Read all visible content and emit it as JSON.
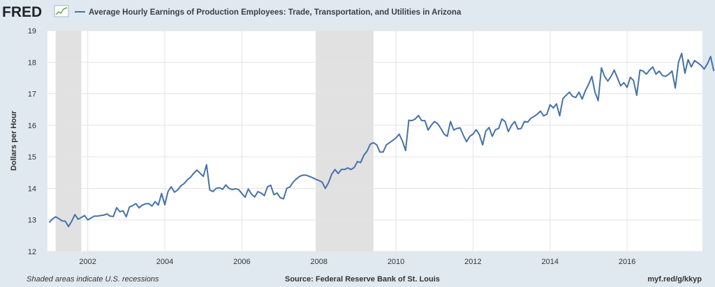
{
  "header": {
    "logo": "FRED",
    "logo_icon": "chart-line-icon",
    "title": "Average Hourly Earnings of Production Employees: Trade, Transportation, and Utilities in Arizona"
  },
  "footer": {
    "note": "Shaded areas indicate U.S. recessions",
    "source": "Source: Federal Reserve Bank of St. Louis",
    "link": "myf.red/g/kkyp"
  },
  "colors": {
    "line": "#4572a7",
    "recession": "#e1e1e1",
    "background": "#e1e9f0",
    "plot": "#ffffff"
  },
  "chart_data": {
    "type": "line",
    "title": "Average Hourly Earnings of Production Employees: Trade, Transportation, and Utilities in Arizona",
    "ylabel": "Dollars per Hour",
    "xlabel": "",
    "ylim": [
      12,
      19
    ],
    "xlim": [
      "2000-12-15",
      "2017-12-15"
    ],
    "yticks": [
      12,
      13,
      14,
      15,
      16,
      17,
      18,
      19
    ],
    "xticks": [
      "2002",
      "2004",
      "2006",
      "2008",
      "2010",
      "2012",
      "2014",
      "2016"
    ],
    "grid": true,
    "recessions": [
      [
        "2001-03-01",
        "2001-11-01"
      ],
      [
        "2007-12-01",
        "2009-06-01"
      ]
    ],
    "series": [
      {
        "start": "2001-01",
        "frequency": "monthly",
        "values": [
          12.92,
          13.03,
          13.1,
          13.04,
          12.97,
          12.96,
          12.79,
          12.96,
          13.17,
          13.02,
          13.08,
          13.14,
          13.0,
          13.06,
          13.12,
          13.12,
          13.14,
          13.15,
          13.19,
          13.12,
          13.11,
          13.39,
          13.26,
          13.29,
          13.1,
          13.41,
          13.45,
          13.52,
          13.38,
          13.47,
          13.51,
          13.52,
          13.44,
          13.58,
          13.47,
          13.84,
          13.48,
          13.9,
          14.05,
          13.88,
          13.95,
          14.08,
          14.15,
          14.27,
          14.35,
          14.48,
          14.58,
          14.48,
          14.38,
          14.75,
          13.95,
          13.9,
          14.0,
          14.02,
          13.97,
          14.11,
          14.0,
          13.96,
          13.99,
          13.96,
          13.84,
          13.72,
          13.98,
          13.82,
          13.73,
          13.9,
          13.85,
          13.77,
          14.05,
          14.1,
          13.8,
          13.85,
          13.7,
          13.67,
          14.0,
          14.05,
          14.2,
          14.3,
          14.38,
          14.42,
          14.42,
          14.38,
          14.34,
          14.29,
          14.25,
          14.2,
          14.0,
          14.18,
          14.45,
          14.6,
          14.47,
          14.6,
          14.6,
          14.65,
          14.6,
          14.66,
          14.85,
          14.82,
          15.05,
          15.18,
          15.4,
          15.45,
          15.38,
          15.15,
          15.15,
          15.38,
          15.45,
          15.52,
          15.6,
          15.72,
          15.5,
          15.2,
          16.16,
          16.15,
          16.2,
          16.31,
          16.15,
          16.15,
          15.85,
          16.0,
          16.12,
          16.05,
          15.9,
          15.72,
          15.65,
          16.12,
          15.85,
          15.9,
          15.92,
          15.68,
          15.48,
          15.65,
          15.72,
          15.86,
          15.7,
          15.38,
          15.82,
          15.93,
          15.65,
          15.86,
          15.9,
          16.2,
          16.12,
          15.8,
          16.0,
          16.12,
          15.88,
          15.9,
          16.12,
          16.1,
          16.22,
          16.28,
          16.35,
          16.45,
          16.3,
          16.35,
          16.65,
          16.55,
          16.68,
          16.3,
          16.85,
          16.95,
          17.05,
          16.92,
          16.88,
          17.05,
          16.83,
          17.1,
          17.3,
          17.55,
          17.05,
          16.78,
          17.82,
          17.55,
          17.4,
          17.55,
          17.75,
          17.5,
          17.25,
          17.35,
          17.2,
          17.52,
          17.42,
          16.95,
          17.75,
          17.72,
          17.62,
          17.75,
          17.85,
          17.62,
          17.72,
          17.58,
          17.55,
          17.62,
          17.72,
          17.18,
          18.0,
          18.28,
          17.65,
          18.08,
          17.85,
          18.05,
          17.98,
          17.9,
          17.78,
          17.95,
          18.18,
          17.72
        ]
      }
    ]
  }
}
